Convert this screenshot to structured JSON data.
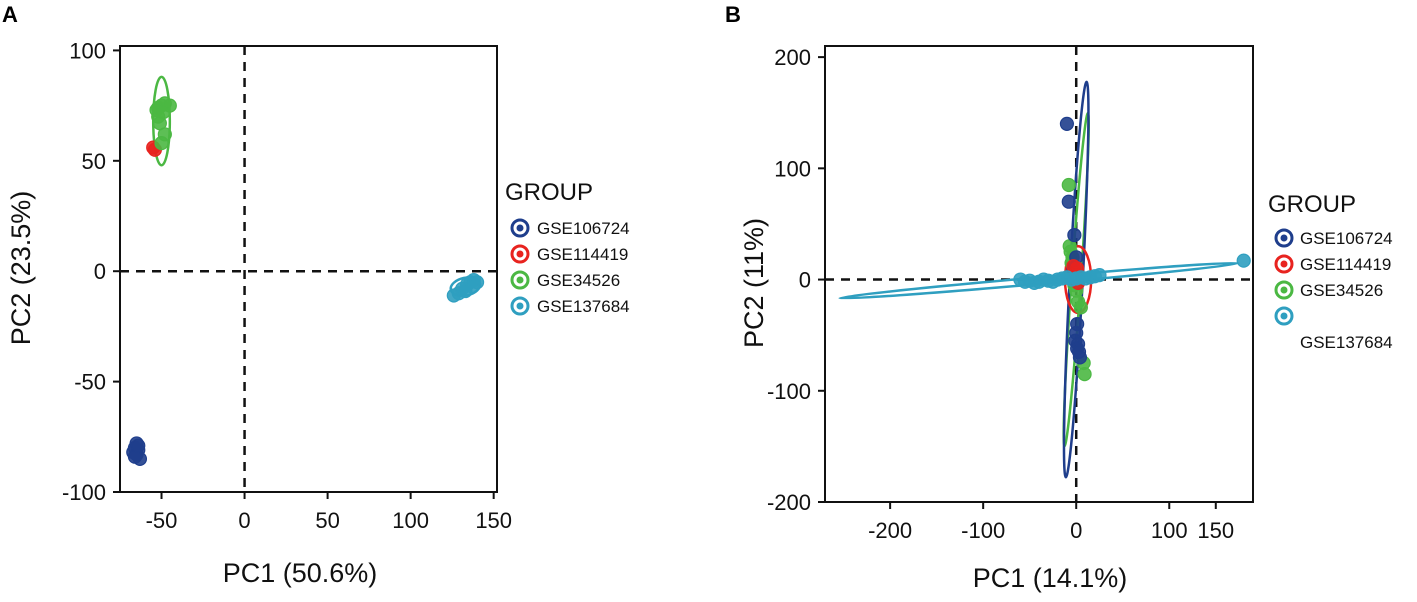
{
  "chart_data": [
    {
      "type": "scatter",
      "panel_label": "A",
      "xlabel": "PC1 (50.6%)",
      "ylabel": "PC2 (23.5%)",
      "xlim": [
        -75,
        152
      ],
      "ylim": [
        -100,
        102
      ],
      "xticks": [
        -50,
        0,
        50,
        100,
        150
      ],
      "yticks": [
        100,
        50,
        0,
        -50,
        -100
      ],
      "xtick_labels": [
        "-50",
        "0",
        "50",
        "100",
        "150"
      ],
      "ytick_labels": [
        "100",
        "50",
        "0",
        "-50",
        "-100"
      ],
      "reference_lines": {
        "x": 0,
        "y": 0
      },
      "legend": {
        "title": "GROUP",
        "entries": [
          {
            "label": "GSE106724",
            "color": "#1f3e8c"
          },
          {
            "label": "GSE114419",
            "color": "#e8231f"
          },
          {
            "label": "GSE34526",
            "color": "#4bb843"
          },
          {
            "label": "GSE137684",
            "color": "#2f9fc0"
          }
        ]
      },
      "series": [
        {
          "name": "GSE106724",
          "color": "#1f3e8c",
          "points": [
            [
              -65,
              -78
            ],
            [
              -66,
              -80
            ],
            [
              -64,
              -81
            ],
            [
              -67,
              -82
            ],
            [
              -65,
              -83
            ],
            [
              -63,
              -85
            ],
            [
              -66,
              -84
            ],
            [
              -64,
              -79
            ]
          ],
          "ellipse": null
        },
        {
          "name": "GSE114419",
          "color": "#e8231f",
          "points": [
            [
              -55,
              56
            ],
            [
              -54,
              55
            ]
          ],
          "ellipse": null
        },
        {
          "name": "GSE34526",
          "color": "#4bb843",
          "points": [
            [
              -52,
              74
            ],
            [
              -50,
              75
            ],
            [
              -48,
              76
            ],
            [
              -52,
              70
            ],
            [
              -51,
              67
            ],
            [
              -48,
              62
            ],
            [
              -50,
              58
            ],
            [
              -45,
              75
            ],
            [
              -53,
              73
            ],
            [
              -49,
              72
            ]
          ],
          "ellipse": {
            "cx": -50,
            "cy": 68,
            "rx": 5,
            "ry": 20,
            "angle": 0
          }
        },
        {
          "name": "GSE137684",
          "color": "#2f9fc0",
          "points": [
            [
              126,
              -11
            ],
            [
              129,
              -10
            ],
            [
              131,
              -8
            ],
            [
              134,
              -6
            ],
            [
              136,
              -5
            ],
            [
              138,
              -4
            ],
            [
              140,
              -5
            ],
            [
              137,
              -7
            ],
            [
              133,
              -9
            ]
          ],
          "ellipse": {
            "cx": 133,
            "cy": -7,
            "rx": 9,
            "ry": 4,
            "angle": -12
          }
        }
      ]
    },
    {
      "type": "scatter",
      "panel_label": "B",
      "xlabel": "PC1 (14.1%)",
      "ylabel": "PC2 (11%)",
      "xlim": [
        -270,
        190
      ],
      "ylim": [
        -200,
        210
      ],
      "xticks": [
        -200,
        -100,
        0,
        100,
        150
      ],
      "yticks": [
        200,
        100,
        0,
        -100,
        -200
      ],
      "xtick_labels": [
        "-200",
        "-100",
        "0",
        "100",
        "150"
      ],
      "ytick_labels": [
        "200",
        "100",
        "0",
        "-100",
        "-200"
      ],
      "reference_lines": {
        "x": 0,
        "y": 0
      },
      "legend": {
        "title": "GROUP",
        "entries": [
          {
            "label": "GSE106724",
            "color": "#1f3e8c"
          },
          {
            "label": "GSE114419",
            "color": "#e8231f"
          },
          {
            "label": "GSE34526",
            "color": "#4bb843"
          },
          {
            "label": "GSE137684",
            "color": "#2f9fc0"
          }
        ]
      },
      "series": [
        {
          "name": "GSE34526",
          "color": "#4bb843",
          "points": [
            [
              -8,
              85
            ],
            [
              -7,
              30
            ],
            [
              -6,
              25
            ],
            [
              -5,
              15
            ],
            [
              -3,
              5
            ],
            [
              -2,
              -5
            ],
            [
              0,
              -10
            ],
            [
              2,
              -20
            ],
            [
              5,
              -25
            ],
            [
              8,
              -75
            ],
            [
              9,
              -85
            ],
            [
              -4,
              20
            ]
          ],
          "ellipse": {
            "cx": 0,
            "cy": 0,
            "rx": 5,
            "ry": 150,
            "angle": 4
          }
        },
        {
          "name": "GSE106724",
          "color": "#1f3e8c",
          "points": [
            [
              -10,
              140
            ],
            [
              -8,
              70
            ],
            [
              -2,
              40
            ],
            [
              0,
              20
            ],
            [
              -3,
              10
            ],
            [
              1,
              -40
            ],
            [
              0,
              -48
            ],
            [
              -1,
              -55
            ],
            [
              2,
              -58
            ],
            [
              1,
              -62
            ],
            [
              3,
              -65
            ],
            [
              4,
              -70
            ]
          ],
          "ellipse": {
            "cx": 0,
            "cy": 0,
            "rx": 7,
            "ry": 178,
            "angle": 3
          }
        },
        {
          "name": "GSE114419",
          "color": "#e8231f",
          "points": [
            [
              -3,
              12
            ],
            [
              1,
              10
            ],
            [
              -1,
              5
            ],
            [
              2,
              -3
            ]
          ],
          "ellipse": {
            "cx": 2,
            "cy": 0,
            "rx": 14,
            "ry": 30,
            "angle": 0
          }
        },
        {
          "name": "GSE137684",
          "color": "#2f9fc0",
          "points": [
            [
              -60,
              0
            ],
            [
              -55,
              -2
            ],
            [
              -50,
              -1
            ],
            [
              -45,
              -3
            ],
            [
              -40,
              -2
            ],
            [
              -35,
              0
            ],
            [
              -30,
              -1
            ],
            [
              -25,
              -2
            ],
            [
              -20,
              0
            ],
            [
              -15,
              1
            ],
            [
              -10,
              2
            ],
            [
              -5,
              0
            ],
            [
              0,
              1
            ],
            [
              5,
              2
            ],
            [
              10,
              1
            ],
            [
              15,
              2
            ],
            [
              20,
              3
            ],
            [
              25,
              4
            ],
            [
              180,
              17
            ]
          ],
          "ellipse": {
            "cx": -40,
            "cy": -1,
            "rx": 215,
            "ry": 3,
            "angle": -5
          }
        }
      ]
    }
  ]
}
